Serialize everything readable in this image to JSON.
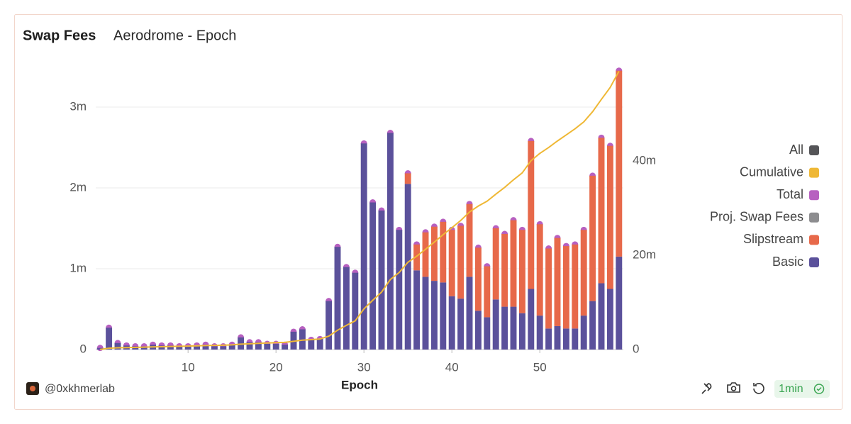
{
  "chart_data": {
    "type": "bar",
    "title": "Swap Fees",
    "subtitle": "Aerodrome - Epoch",
    "x_label": "Epoch",
    "x": [
      0,
      1,
      2,
      3,
      4,
      5,
      6,
      7,
      8,
      9,
      10,
      11,
      12,
      13,
      14,
      15,
      16,
      17,
      18,
      19,
      20,
      21,
      22,
      23,
      24,
      25,
      26,
      27,
      28,
      29,
      30,
      31,
      32,
      33,
      34,
      35,
      36,
      37,
      38,
      39,
      40,
      41,
      42,
      43,
      44,
      45,
      46,
      47,
      48,
      49,
      50,
      51,
      52,
      53,
      54,
      55,
      56,
      57,
      58,
      59
    ],
    "xlim": [
      -0.5,
      59.5
    ],
    "xticks": [
      10,
      20,
      30,
      40,
      50
    ],
    "ylim": [
      0,
      3500000
    ],
    "yticks": [
      0,
      {
        "value": 1000000,
        "label": "1m"
      },
      {
        "value": 2000000,
        "label": "2m"
      },
      {
        "value": 3000000,
        "label": "3m"
      }
    ],
    "y2lim": [
      0,
      60000000
    ],
    "y2ticks": [
      0,
      {
        "value": 20000000,
        "label": "20m"
      },
      {
        "value": 40000000,
        "label": "40m"
      }
    ],
    "grid": true,
    "stacked": true,
    "legend": "right",
    "series": [
      {
        "name": "All",
        "color": "#555558"
      },
      {
        "name": "Cumulative",
        "color": "#efb836",
        "type": "line",
        "axis": "y2",
        "values": [
          20000,
          290000,
          370000,
          420000,
          460000,
          500000,
          560000,
          610000,
          660000,
          700000,
          740000,
          790000,
          850000,
          890000,
          930000,
          990000,
          1140000,
          1230000,
          1320000,
          1390000,
          1460000,
          1520000,
          1740000,
          1990000,
          2110000,
          2240000,
          2840000,
          4110000,
          5130000,
          6080000,
          8630000,
          10450000,
          12170000,
          14850000,
          16330000,
          18510000,
          19810000,
          21260000,
          22780000,
          24360000,
          25840000,
          27370000,
          29170000,
          30430000,
          31460000,
          32960000,
          34390000,
          35990000,
          37470000,
          40050000,
          41600000,
          42850000,
          44230000,
          45510000,
          46810000,
          48290000,
          50440000,
          53060000,
          55580000,
          59030000
        ]
      },
      {
        "name": "Total",
        "color": "#b760c0",
        "type": "scatter",
        "values": [
          20000,
          270000,
          80000,
          50000,
          40000,
          40000,
          60000,
          50000,
          50000,
          40000,
          40000,
          50000,
          60000,
          40000,
          40000,
          60000,
          150000,
          90000,
          90000,
          70000,
          70000,
          60000,
          220000,
          250000,
          120000,
          130000,
          600000,
          1270000,
          1020000,
          950000,
          2550000,
          1820000,
          1720000,
          2680000,
          1480000,
          2180000,
          1300000,
          1450000,
          1520000,
          1580000,
          1480000,
          1530000,
          1800000,
          1260000,
          1030000,
          1500000,
          1430000,
          1600000,
          1480000,
          2580000,
          1550000,
          1250000,
          1380000,
          1280000,
          1300000,
          1480000,
          2150000,
          2620000,
          2520000,
          3450000
        ]
      },
      {
        "name": "Proj. Swap Fees",
        "color": "#8d8d8f"
      },
      {
        "name": "Slipstream",
        "color": "#e7694a",
        "type": "bar",
        "values": [
          0,
          0,
          0,
          0,
          0,
          0,
          0,
          0,
          0,
          0,
          0,
          0,
          0,
          0,
          0,
          0,
          0,
          0,
          0,
          0,
          0,
          0,
          0,
          0,
          0,
          0,
          0,
          0,
          0,
          0,
          0,
          0,
          0,
          0,
          0,
          130000,
          320000,
          550000,
          670000,
          750000,
          820000,
          900000,
          900000,
          780000,
          630000,
          880000,
          900000,
          1070000,
          1030000,
          1830000,
          1130000,
          990000,
          1090000,
          1020000,
          1040000,
          1060000,
          1550000,
          1800000,
          1770000,
          2300000
        ]
      },
      {
        "name": "Basic",
        "color": "#5b519b",
        "type": "bar",
        "values": [
          20000,
          270000,
          80000,
          50000,
          40000,
          40000,
          60000,
          50000,
          50000,
          40000,
          40000,
          50000,
          60000,
          40000,
          40000,
          60000,
          150000,
          90000,
          90000,
          70000,
          70000,
          60000,
          220000,
          250000,
          120000,
          130000,
          600000,
          1270000,
          1020000,
          950000,
          2550000,
          1820000,
          1720000,
          2680000,
          1480000,
          2050000,
          980000,
          900000,
          850000,
          830000,
          660000,
          630000,
          900000,
          480000,
          400000,
          620000,
          530000,
          530000,
          450000,
          750000,
          420000,
          260000,
          290000,
          260000,
          260000,
          420000,
          600000,
          820000,
          750000,
          1150000
        ]
      }
    ]
  },
  "footer": {
    "author": "@0xkhmerlab",
    "refresh": "1min"
  }
}
